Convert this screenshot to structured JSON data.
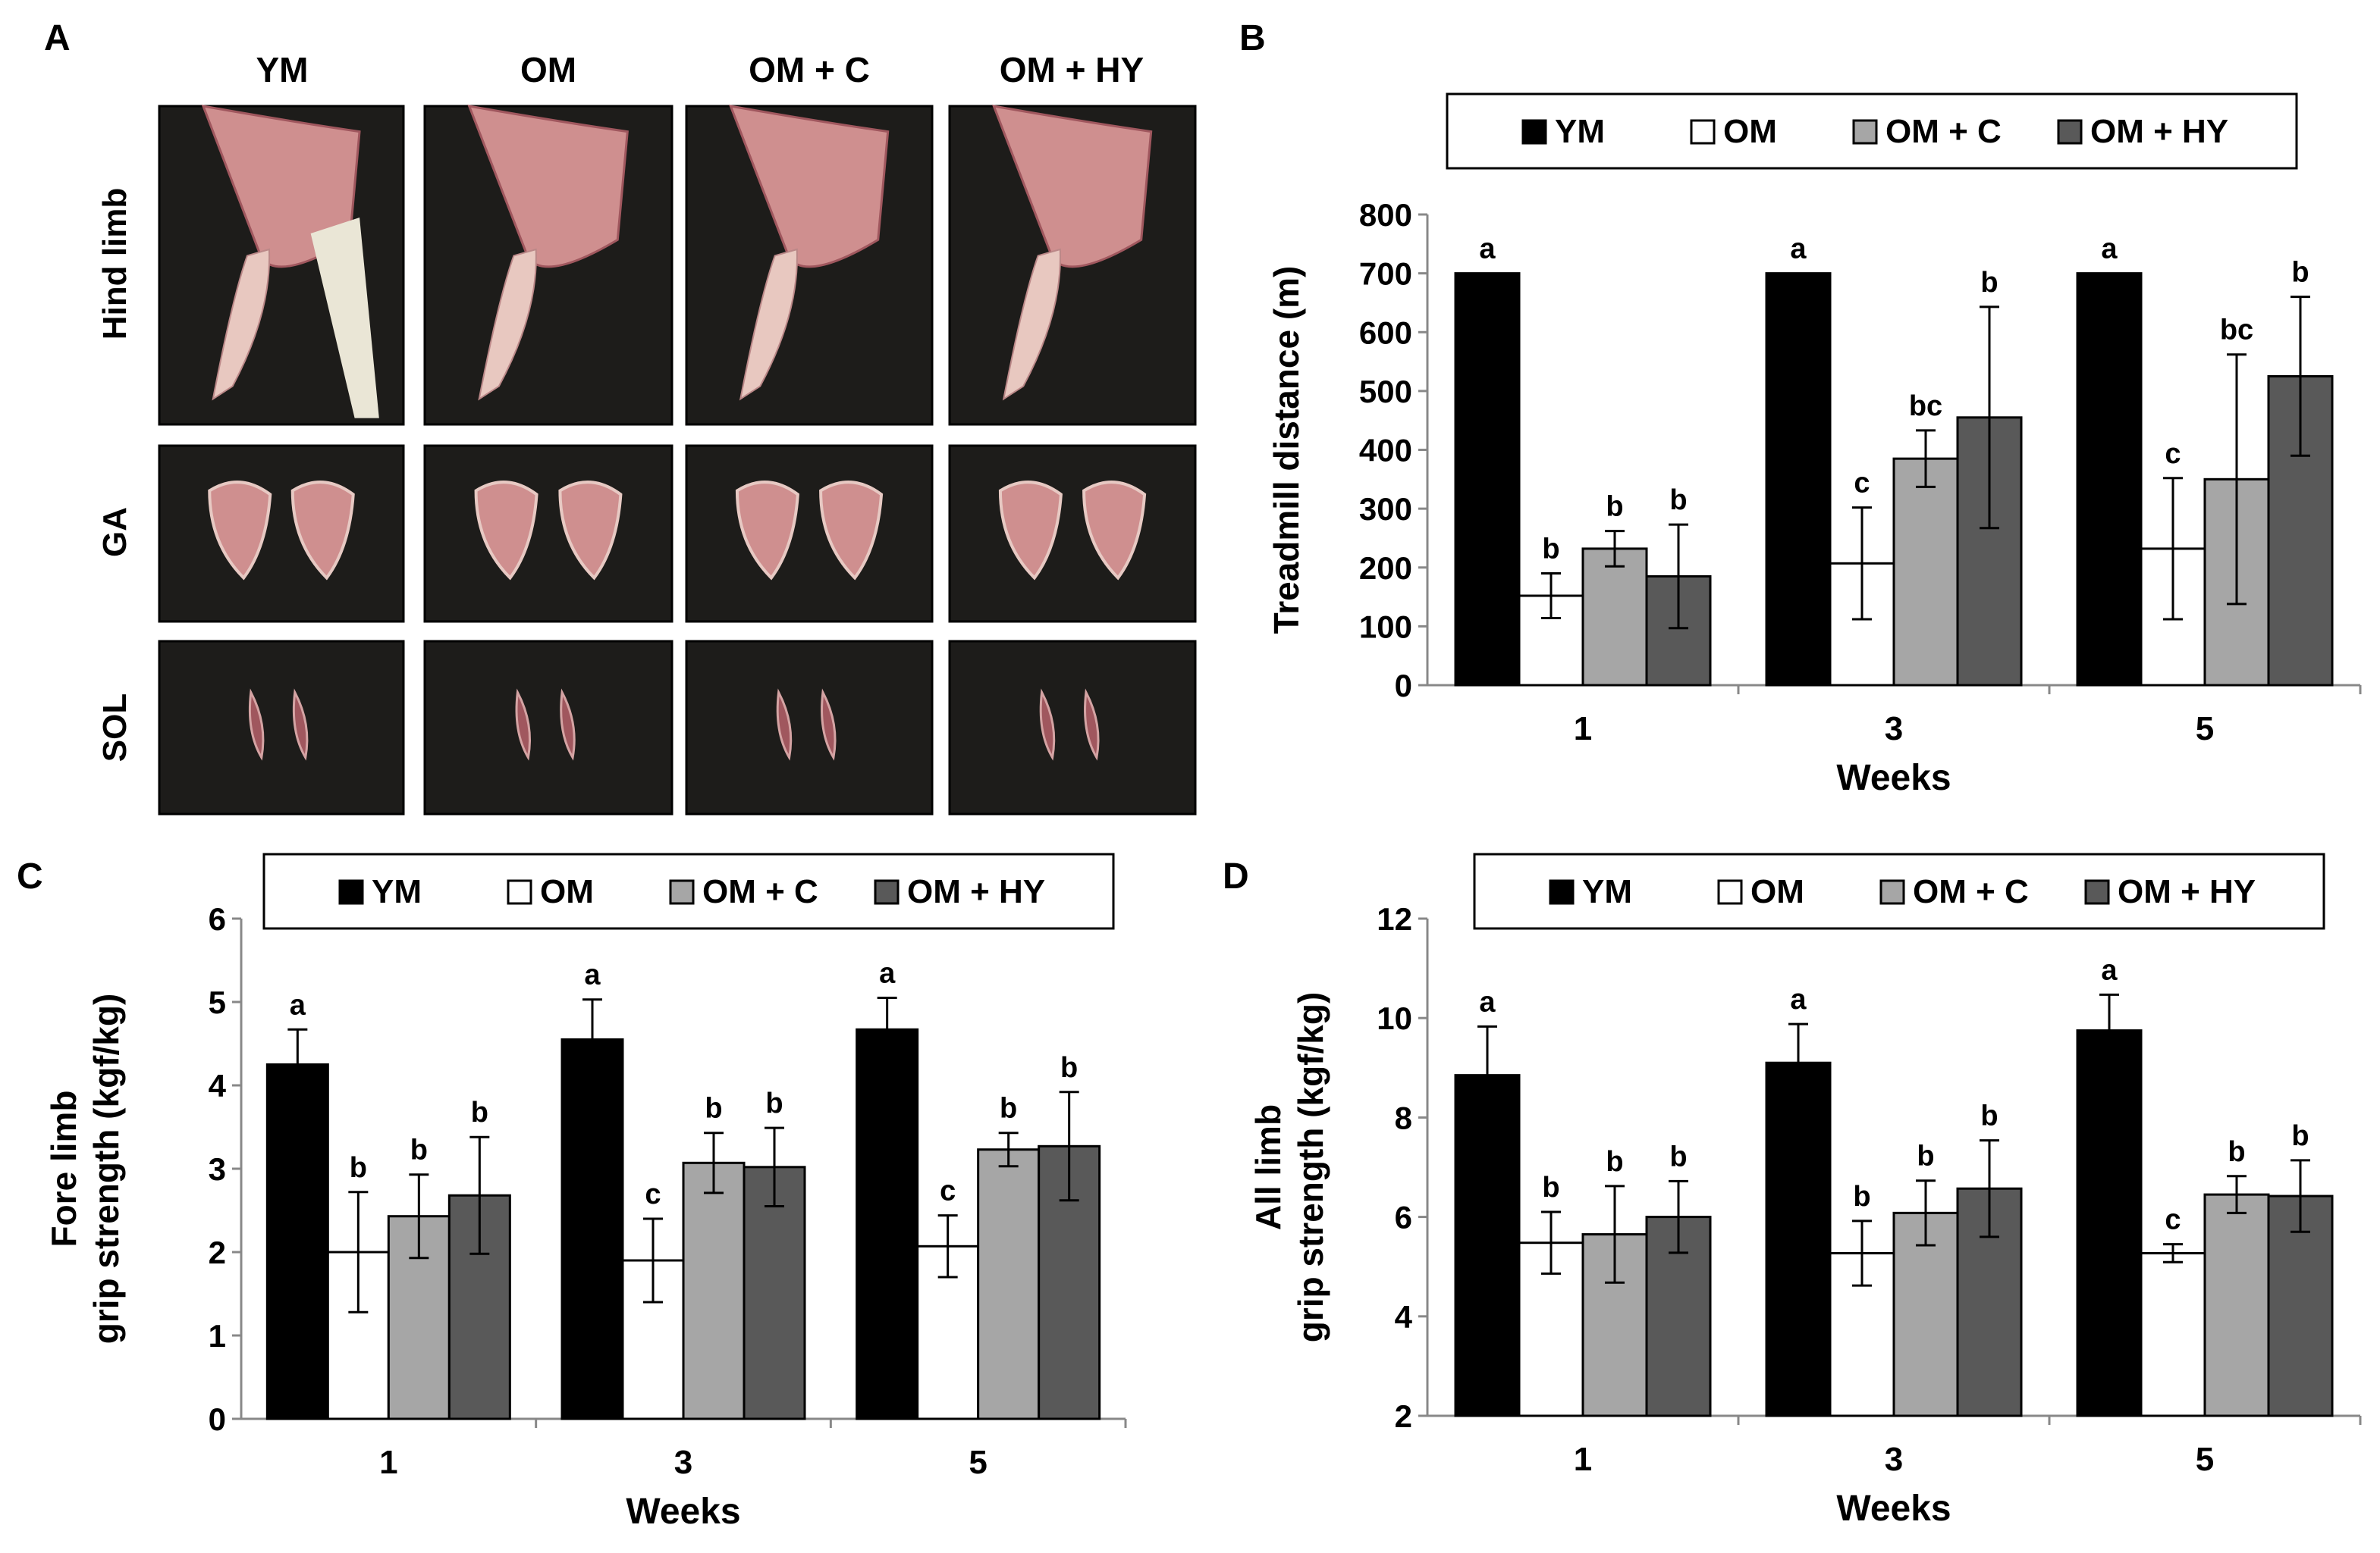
{
  "figure": {
    "panel_labels": {
      "A": "A",
      "B": "B",
      "C": "C",
      "D": "D"
    },
    "groups": [
      "YM",
      "OM",
      "OM + C",
      "OM + HY"
    ],
    "tissue_rows": [
      "Hind limb",
      "GA",
      "SOL"
    ]
  },
  "colors": {
    "YM": "#000000",
    "OM": "#ffffff",
    "OM + C": "#a6a6a6",
    "OM + HY": "#595959",
    "photo_bg": "#1d1c1a",
    "tissue": "#cf8f8f",
    "tissue_dark": "#a0575e",
    "fur": "#eae6d6"
  },
  "chart_data": [
    {
      "id": "B",
      "type": "bar",
      "title": "",
      "xlabel": "Weeks",
      "ylabel": "Treadmill distance (m)",
      "categories": [
        "1",
        "3",
        "5"
      ],
      "ylim": [
        0,
        800
      ],
      "yticks": [
        "0",
        "100",
        "200",
        "300",
        "400",
        "500",
        "600",
        "700",
        "800"
      ],
      "legend": "top",
      "series": [
        {
          "name": "YM",
          "values": [
            700,
            700,
            700
          ],
          "errors": [
            0,
            0,
            0
          ],
          "letters": [
            "a",
            "a",
            "a"
          ]
        },
        {
          "name": "OM",
          "values": [
            152,
            207,
            232
          ],
          "errors": [
            38,
            95,
            120
          ],
          "letters": [
            "b",
            "c",
            "c"
          ]
        },
        {
          "name": "OM + C",
          "values": [
            232,
            385,
            350
          ],
          "errors": [
            30,
            48,
            212
          ],
          "letters": [
            "b",
            "bc",
            "bc"
          ]
        },
        {
          "name": "OM + HY",
          "values": [
            185,
            455,
            525
          ],
          "errors": [
            88,
            188,
            135
          ],
          "letters": [
            "b",
            "b",
            "b"
          ]
        }
      ]
    },
    {
      "id": "C",
      "type": "bar",
      "title": "",
      "xlabel": "Weeks",
      "ylabel": [
        "Fore limb",
        "grip strength (kgf/kg)"
      ],
      "categories": [
        "1",
        "3",
        "5"
      ],
      "ylim": [
        0,
        6
      ],
      "yticks": [
        "0",
        "1",
        "2",
        "3",
        "4",
        "5",
        "6"
      ],
      "legend": "top",
      "series": [
        {
          "name": "YM",
          "values": [
            4.25,
            4.55,
            4.67
          ],
          "errors": [
            0.42,
            0.48,
            0.38
          ],
          "letters": [
            "a",
            "a",
            "a"
          ]
        },
        {
          "name": "OM",
          "values": [
            2.0,
            1.9,
            2.07
          ],
          "errors": [
            0.72,
            0.5,
            0.37
          ],
          "letters": [
            "b",
            "c",
            "c"
          ]
        },
        {
          "name": "OM + C",
          "values": [
            2.43,
            3.07,
            3.23
          ],
          "errors": [
            0.5,
            0.36,
            0.2
          ],
          "letters": [
            "b",
            "b",
            "b"
          ]
        },
        {
          "name": "OM + HY",
          "values": [
            2.68,
            3.02,
            3.27
          ],
          "errors": [
            0.7,
            0.47,
            0.65
          ],
          "letters": [
            "b",
            "b",
            "b"
          ]
        }
      ]
    },
    {
      "id": "D",
      "type": "bar",
      "title": "",
      "xlabel": "Weeks",
      "ylabel": [
        "All limb",
        "grip strength (kgf/kg)"
      ],
      "categories": [
        "1",
        "3",
        "5"
      ],
      "ylim": [
        2,
        12
      ],
      "yticks": [
        "2",
        "4",
        "6",
        "8",
        "10",
        "12"
      ],
      "legend": "top",
      "series": [
        {
          "name": "YM",
          "values": [
            8.85,
            9.1,
            9.75
          ],
          "errors": [
            0.98,
            0.78,
            0.72
          ],
          "letters": [
            "a",
            "a",
            "a"
          ]
        },
        {
          "name": "OM",
          "values": [
            5.48,
            5.27,
            5.27
          ],
          "errors": [
            0.62,
            0.65,
            0.18
          ],
          "letters": [
            "b",
            "b",
            "c"
          ]
        },
        {
          "name": "OM + C",
          "values": [
            5.65,
            6.08,
            6.45
          ],
          "errors": [
            0.97,
            0.65,
            0.37
          ],
          "letters": [
            "b",
            "b",
            "b"
          ]
        },
        {
          "name": "OM + HY",
          "values": [
            6.0,
            6.57,
            6.42
          ],
          "errors": [
            0.72,
            0.97,
            0.72
          ],
          "letters": [
            "b",
            "b",
            "b"
          ]
        }
      ]
    }
  ]
}
